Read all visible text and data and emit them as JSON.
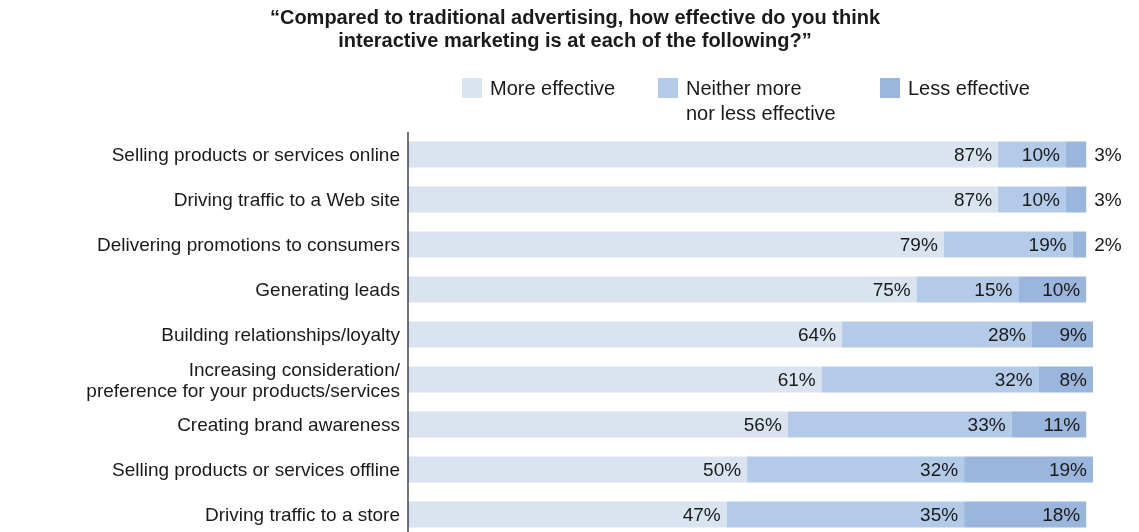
{
  "chart_data": {
    "type": "bar",
    "orientation": "horizontal",
    "stacked": true,
    "title": "“Compared to traditional advertising, how effective do you think\ninteractive marketing is at each of the following?”",
    "categories": [
      "Selling products or services online",
      "Driving traffic to a Web site",
      "Delivering promotions to consumers",
      "Generating leads",
      "Building relationships/loyalty",
      "Increasing consideration/\npreference for your products/services",
      "Creating brand awareness",
      "Selling products or services offline",
      "Driving traffic to a store"
    ],
    "series": [
      {
        "name": "More effective",
        "color": "#d9e4f0",
        "values": [
          87,
          87,
          79,
          75,
          64,
          61,
          56,
          50,
          47
        ],
        "value_labels": [
          "87%",
          "87%",
          "79%",
          "75%",
          "64%",
          "61%",
          "56%",
          "50%",
          "47%"
        ]
      },
      {
        "name": "Neither more\nnor less effective",
        "color": "#b3cbe9",
        "values": [
          10,
          10,
          19,
          15,
          28,
          32,
          33,
          32,
          35
        ],
        "value_labels": [
          "10%",
          "10%",
          "19%",
          "15%",
          "28%",
          "32%",
          "33%",
          "32%",
          "35%"
        ]
      },
      {
        "name": "Less effective",
        "color": "#9bb6dc",
        "values": [
          3,
          3,
          2,
          10,
          9,
          8,
          11,
          19,
          18
        ],
        "value_labels": [
          "3%",
          "3%",
          "2%",
          "10%",
          "9%",
          "8%",
          "11%",
          "19%",
          "18%"
        ]
      }
    ],
    "legend": "top",
    "grid": false,
    "tick_labels": "y"
  }
}
